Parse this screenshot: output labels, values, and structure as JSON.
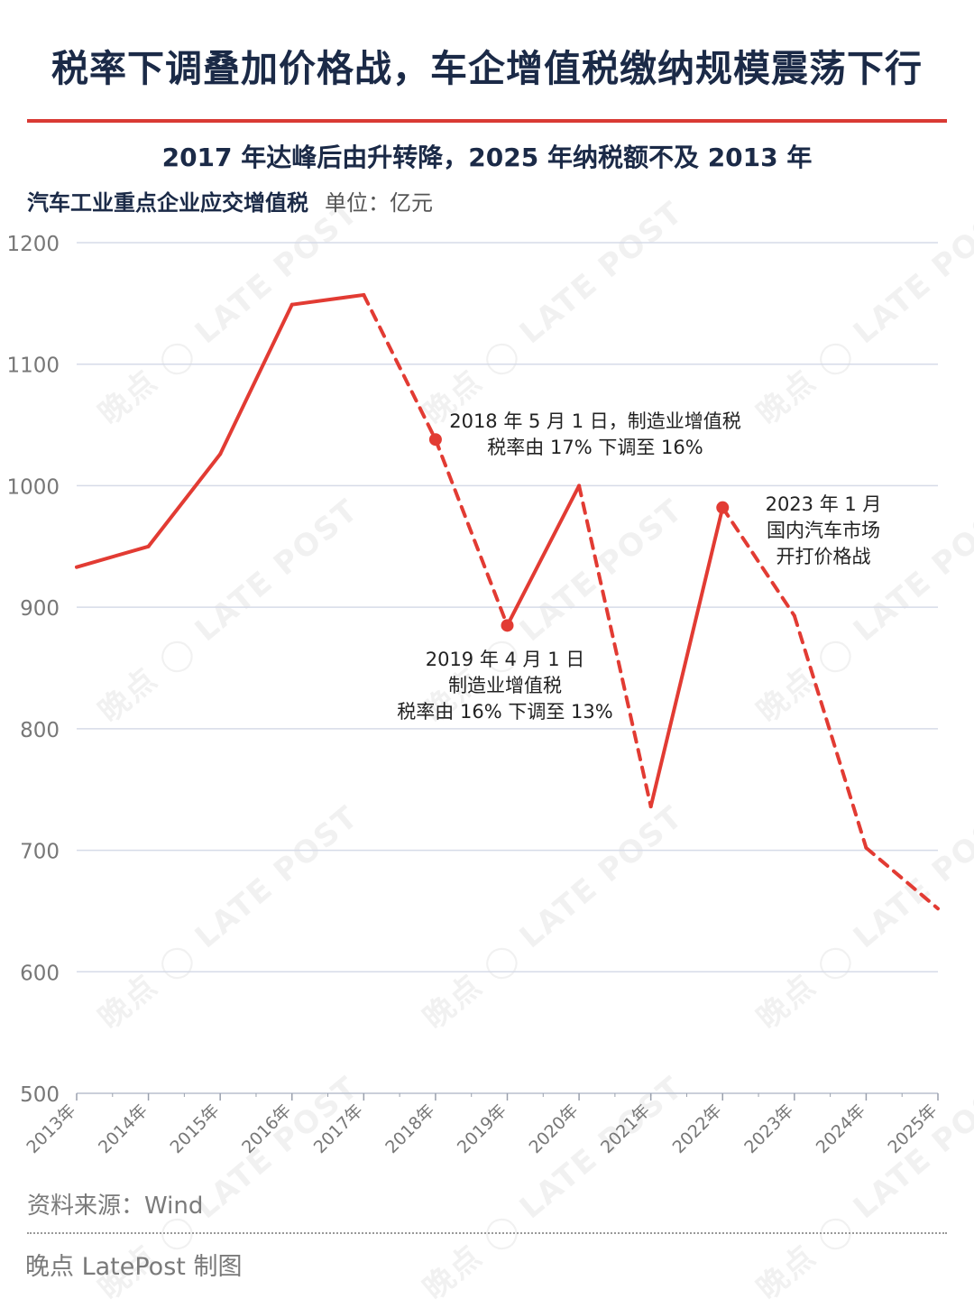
{
  "header": {
    "title": "税率下调叠加价格战，车企增值税缴纳规模震荡下行",
    "subtitle": "2017 年达峰后由升转降，2025 年纳税额不及 2013 年",
    "metric": "汽车工业重点企业应交增值税",
    "unit": "单位：亿元"
  },
  "footer": {
    "source": "资料来源：Wind",
    "credit": "晚点 LatePost 制图"
  },
  "watermark": {
    "text": "晚点",
    "brand": "LATE POST"
  },
  "colors": {
    "line": "#e23b33",
    "title": "#1b2a47",
    "grid": "#d6dbe8",
    "axis_text": "#777777",
    "rule": "#d93a34"
  },
  "chart_data": {
    "type": "line",
    "categories": [
      "2013年",
      "2014年",
      "2015年",
      "2016年",
      "2017年",
      "2018年",
      "2019年",
      "2020年",
      "2021年",
      "2022年",
      "2023年",
      "2024年",
      "2025年"
    ],
    "values": [
      933,
      950,
      1026,
      1149,
      1157,
      1038,
      885,
      1000,
      736,
      982,
      893,
      702,
      652
    ],
    "segment_styles": [
      "solid",
      "solid",
      "solid",
      "solid",
      "dashed",
      "dashed",
      "solid",
      "dashed",
      "solid",
      "dashed",
      "dashed",
      "dashed"
    ],
    "markers": [
      5,
      6,
      9
    ],
    "ylim": [
      500,
      1200
    ],
    "yticks": [
      500,
      600,
      700,
      800,
      900,
      1000,
      1100,
      1200
    ],
    "grid": true,
    "annotations": [
      {
        "lines": [
          "2018 年 5 月 1 日，制造业增值税",
          "税率由 17% 下调至 16%"
        ]
      },
      {
        "lines": [
          "2019 年 4 月 1 日",
          "制造业增值税",
          "税率由 16% 下调至 13%"
        ]
      },
      {
        "lines": [
          "2023 年 1 月",
          "国内汽车市场",
          "开打价格战"
        ]
      }
    ]
  }
}
